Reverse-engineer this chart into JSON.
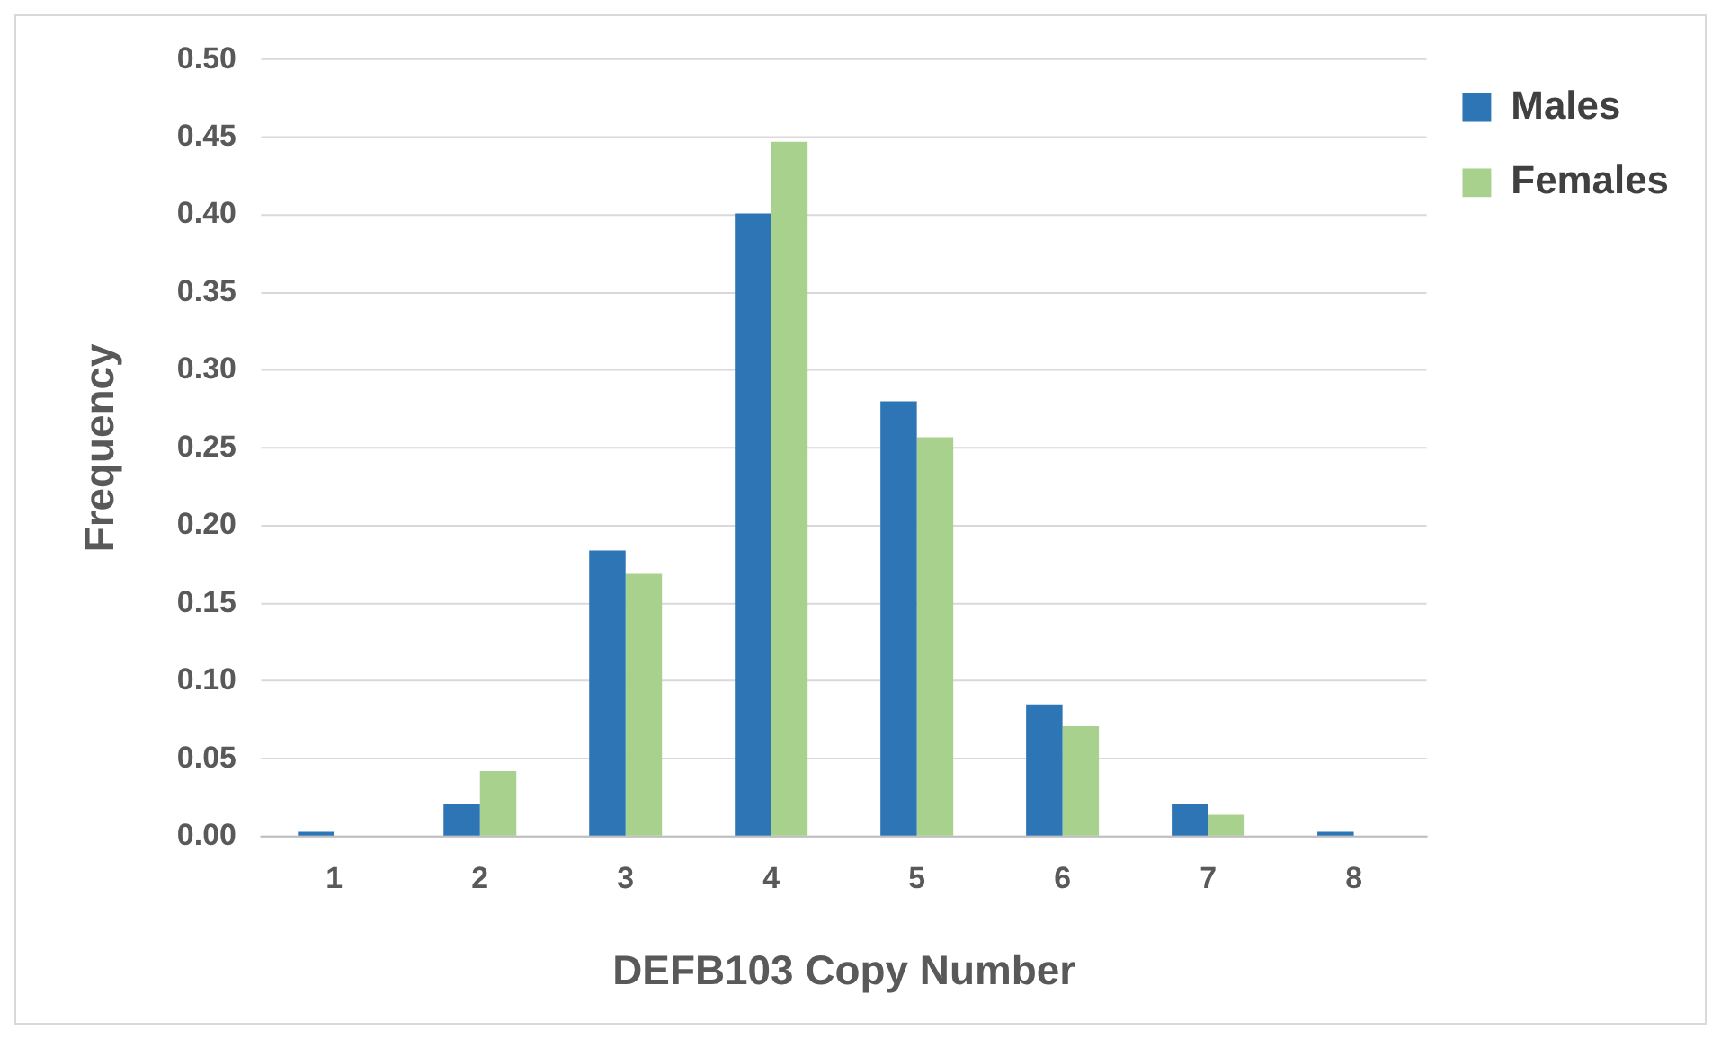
{
  "chart_data": {
    "type": "bar",
    "xlabel": "DEFB103 Copy Number",
    "ylabel": "Frequency",
    "categories": [
      "1",
      "2",
      "3",
      "4",
      "5",
      "6",
      "7",
      "8"
    ],
    "series": [
      {
        "name": "Males",
        "color": "#2e75b6",
        "values": [
          0.003,
          0.021,
          0.184,
          0.401,
          0.28,
          0.085,
          0.021,
          0.003
        ]
      },
      {
        "name": "Females",
        "color": "#a9d18e",
        "values": [
          0,
          0.042,
          0.169,
          0.447,
          0.257,
          0.071,
          0.014,
          0
        ]
      }
    ],
    "ylim": [
      0,
      0.5
    ],
    "yticks": [
      {
        "value": 0,
        "label": "0.00"
      },
      {
        "value": 0.05,
        "label": "0.05"
      },
      {
        "value": 0.1,
        "label": "0.10"
      },
      {
        "value": 0.15,
        "label": "0.15"
      },
      {
        "value": 0.2,
        "label": "0.20"
      },
      {
        "value": 0.25,
        "label": "0.25"
      },
      {
        "value": 0.3,
        "label": "0.30"
      },
      {
        "value": 0.35,
        "label": "0.35"
      },
      {
        "value": 0.4,
        "label": "0.40"
      },
      {
        "value": 0.45,
        "label": "0.45"
      },
      {
        "value": 0.5,
        "label": "0.50"
      }
    ],
    "grid": "y",
    "legend": "top right"
  }
}
